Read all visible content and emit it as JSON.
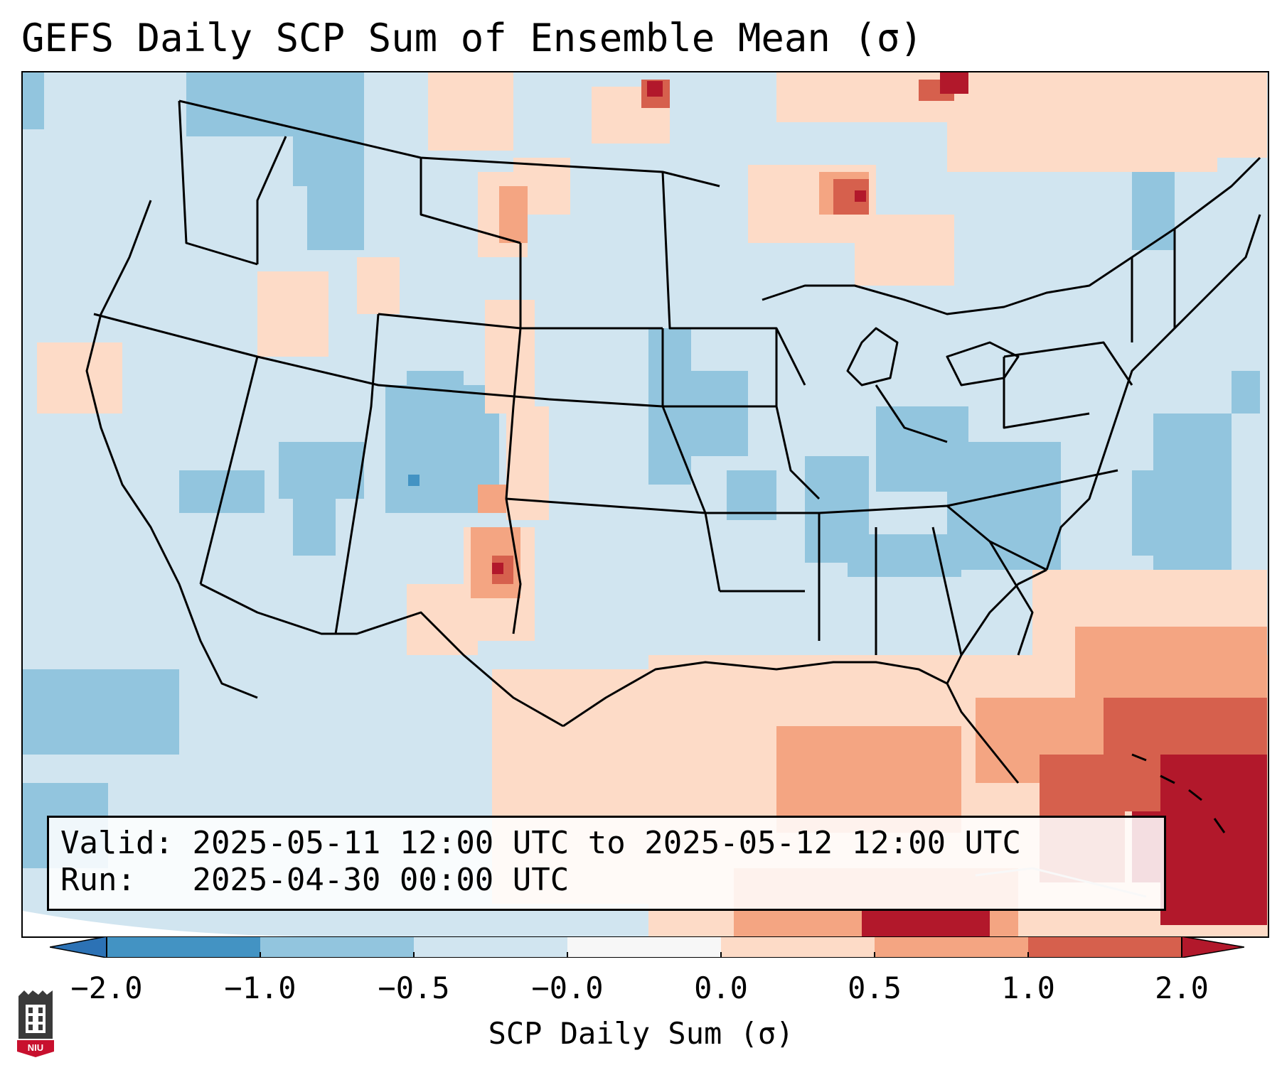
{
  "title": "GEFS Daily SCP Sum of Ensemble Mean (σ)",
  "info": {
    "valid_label": "Valid:",
    "valid_value": "2025-05-11 12:00 UTC to 2025-05-12 12:00 UTC",
    "run_label": "Run:",
    "run_value": "2025-04-30 00:00 UTC"
  },
  "colorbar": {
    "label": "SCP Daily Sum (σ)",
    "ticks": [
      "−2.0",
      "−1.0",
      "−0.5",
      "−0.0",
      "0.0",
      "0.5",
      "1.0",
      "2.0"
    ],
    "colors": {
      "below": "#2c72b5",
      "bins": [
        "#4393c3",
        "#92c5de",
        "#d1e5f0",
        "#f7f7f7",
        "#fddbc7",
        "#f4a582",
        "#d6604d"
      ],
      "above": "#b2182b"
    }
  },
  "logo_text": "NIU"
}
